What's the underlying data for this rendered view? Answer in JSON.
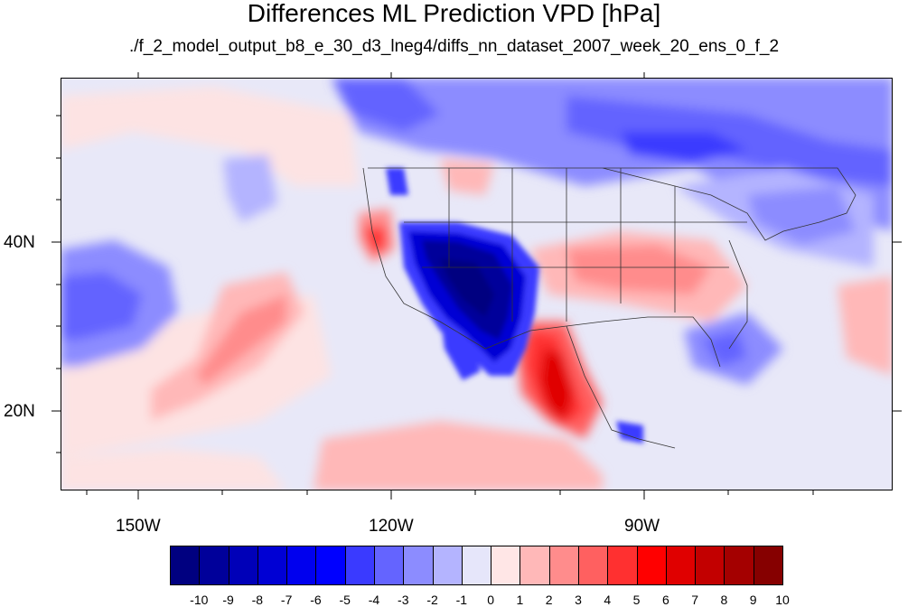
{
  "title": "Differences ML Prediction VPD [hPa]",
  "subtitle": "./f_2_model_output_b8_e_30_d3_lneg4/diffs_nn_dataset_2007_week_20_ens_0_f_2",
  "map": {
    "lon_labels": [
      "150W",
      "120W",
      "90W"
    ],
    "lat_labels": [
      "40N",
      "20N"
    ]
  },
  "colorbar": {
    "labels": [
      "-10",
      "-9",
      "-8",
      "-7",
      "-6",
      "-5",
      "-4",
      "-3",
      "-2",
      "-1",
      "0",
      "1",
      "2",
      "3",
      "4",
      "5",
      "6",
      "7",
      "8",
      "9",
      "10"
    ],
    "colors": [
      "#000080",
      "#00009a",
      "#0000b8",
      "#0000d4",
      "#0000ee",
      "#0000ff",
      "#3a3aff",
      "#6464ff",
      "#8c8cff",
      "#b4b4ff",
      "#e6e6fa",
      "#ffe6e6",
      "#ffb8b8",
      "#ff8c8c",
      "#ff6060",
      "#ff3030",
      "#ff0000",
      "#e00000",
      "#c20000",
      "#a40000",
      "#860000"
    ]
  }
}
